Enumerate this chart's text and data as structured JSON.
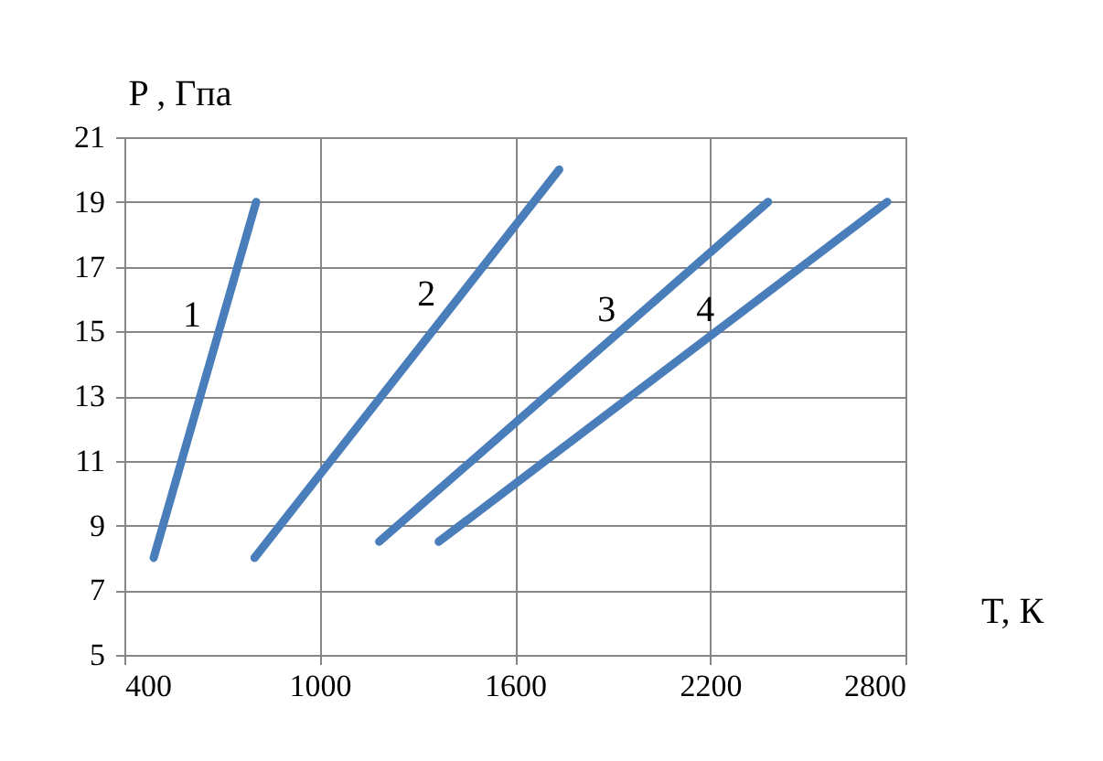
{
  "chart_data": {
    "type": "line",
    "xlabel": "T, К",
    "ylabel": "P , Гпа",
    "xlim": [
      400,
      2800
    ],
    "xticks": [
      400,
      1000,
      1600,
      2200,
      2800
    ],
    "ylim": [
      5,
      21
    ],
    "yticks": [
      5,
      7,
      9,
      11,
      13,
      15,
      17,
      19,
      21
    ],
    "grid": true,
    "marker": "none",
    "line_style": "solid",
    "series": [
      {
        "name": "1",
        "color": "#4a7ebb",
        "x": [
          490,
          805
        ],
        "values": [
          8,
          19
        ]
      },
      {
        "name": "2",
        "color": "#4a7ebb",
        "x": [
          800,
          1736
        ],
        "values": [
          8,
          20
        ]
      },
      {
        "name": "3",
        "color": "#4a7ebb",
        "x": [
          1183,
          2378
        ],
        "values": [
          8.5,
          19
        ]
      },
      {
        "name": "4",
        "color": "#4a7ebb",
        "x": [
          1366,
          2744
        ],
        "values": [
          8.5,
          19
        ]
      }
    ]
  }
}
